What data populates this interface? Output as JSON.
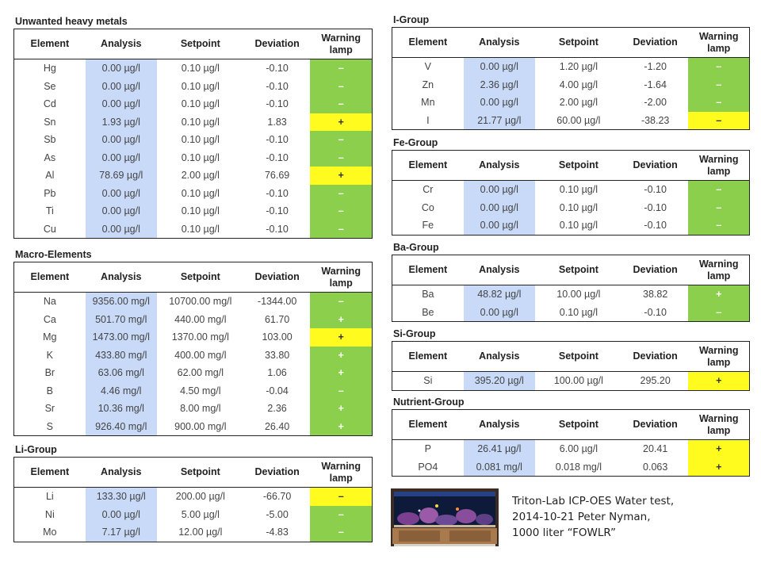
{
  "headers": {
    "element": "Element",
    "analysis": "Analysis",
    "setpoint": "Setpoint",
    "deviation": "Deviation",
    "warning_lamp": "Warning lamp"
  },
  "left_sections": [
    {
      "title": "Unwanted heavy metals",
      "rows": [
        {
          "element": "Hg",
          "analysis": "0.00 µg/l",
          "setpoint": "0.10 µg/l",
          "deviation": "-0.10",
          "lamp": "–",
          "status": "green"
        },
        {
          "element": "Se",
          "analysis": "0.00 µg/l",
          "setpoint": "0.10 µg/l",
          "deviation": "-0.10",
          "lamp": "–",
          "status": "green"
        },
        {
          "element": "Cd",
          "analysis": "0.00 µg/l",
          "setpoint": "0.10 µg/l",
          "deviation": "-0.10",
          "lamp": "–",
          "status": "green"
        },
        {
          "element": "Sn",
          "analysis": "1.93 µg/l",
          "setpoint": "0.10 µg/l",
          "deviation": "1.83",
          "lamp": "+",
          "status": "yellow"
        },
        {
          "element": "Sb",
          "analysis": "0.00 µg/l",
          "setpoint": "0.10 µg/l",
          "deviation": "-0.10",
          "lamp": "–",
          "status": "green"
        },
        {
          "element": "As",
          "analysis": "0.00 µg/l",
          "setpoint": "0.10 µg/l",
          "deviation": "-0.10",
          "lamp": "–",
          "status": "green"
        },
        {
          "element": "Al",
          "analysis": "78.69 µg/l",
          "setpoint": "2.00 µg/l",
          "deviation": "76.69",
          "lamp": "+",
          "status": "yellow"
        },
        {
          "element": "Pb",
          "analysis": "0.00 µg/l",
          "setpoint": "0.10 µg/l",
          "deviation": "-0.10",
          "lamp": "–",
          "status": "green"
        },
        {
          "element": "Ti",
          "analysis": "0.00 µg/l",
          "setpoint": "0.10 µg/l",
          "deviation": "-0.10",
          "lamp": "–",
          "status": "green"
        },
        {
          "element": "Cu",
          "analysis": "0.00 µg/l",
          "setpoint": "0.10 µg/l",
          "deviation": "-0.10",
          "lamp": "–",
          "status": "green"
        }
      ]
    },
    {
      "title": "Macro-Elements",
      "rows": [
        {
          "element": "Na",
          "analysis": "9356.00 mg/l",
          "setpoint": "10700.00 mg/l",
          "deviation": "-1344.00",
          "lamp": "–",
          "status": "green"
        },
        {
          "element": "Ca",
          "analysis": "501.70 mg/l",
          "setpoint": "440.00 mg/l",
          "deviation": "61.70",
          "lamp": "+",
          "status": "green"
        },
        {
          "element": "Mg",
          "analysis": "1473.00 mg/l",
          "setpoint": "1370.00 mg/l",
          "deviation": "103.00",
          "lamp": "+",
          "status": "yellow"
        },
        {
          "element": "K",
          "analysis": "433.80 mg/l",
          "setpoint": "400.00 mg/l",
          "deviation": "33.80",
          "lamp": "+",
          "status": "green"
        },
        {
          "element": "Br",
          "analysis": "63.06 mg/l",
          "setpoint": "62.00 mg/l",
          "deviation": "1.06",
          "lamp": "+",
          "status": "green"
        },
        {
          "element": "B",
          "analysis": "4.46 mg/l",
          "setpoint": "4.50 mg/l",
          "deviation": "-0.04",
          "lamp": "–",
          "status": "green"
        },
        {
          "element": "Sr",
          "analysis": "10.36 mg/l",
          "setpoint": "8.00 mg/l",
          "deviation": "2.36",
          "lamp": "+",
          "status": "green"
        },
        {
          "element": "S",
          "analysis": "926.40 mg/l",
          "setpoint": "900.00 mg/l",
          "deviation": "26.40",
          "lamp": "+",
          "status": "green"
        }
      ]
    },
    {
      "title": "Li-Group",
      "rows": [
        {
          "element": "Li",
          "analysis": "133.30 µg/l",
          "setpoint": "200.00 µg/l",
          "deviation": "-66.70",
          "lamp": "–",
          "status": "yellow"
        },
        {
          "element": "Ni",
          "analysis": "0.00 µg/l",
          "setpoint": "5.00 µg/l",
          "deviation": "-5.00",
          "lamp": "–",
          "status": "green"
        },
        {
          "element": "Mo",
          "analysis": "7.17 µg/l",
          "setpoint": "12.00 µg/l",
          "deviation": "-4.83",
          "lamp": "–",
          "status": "green"
        }
      ]
    }
  ],
  "right_sections": [
    {
      "title": "I-Group",
      "rows": [
        {
          "element": "V",
          "analysis": "0.00 µg/l",
          "setpoint": "1.20 µg/l",
          "deviation": "-1.20",
          "lamp": "–",
          "status": "green"
        },
        {
          "element": "Zn",
          "analysis": "2.36 µg/l",
          "setpoint": "4.00 µg/l",
          "deviation": "-1.64",
          "lamp": "–",
          "status": "green"
        },
        {
          "element": "Mn",
          "analysis": "0.00 µg/l",
          "setpoint": "2.00 µg/l",
          "deviation": "-2.00",
          "lamp": "–",
          "status": "green"
        },
        {
          "element": "I",
          "analysis": "21.77 µg/l",
          "setpoint": "60.00 µg/l",
          "deviation": "-38.23",
          "lamp": "–",
          "status": "yellow"
        }
      ]
    },
    {
      "title": "Fe-Group",
      "rows": [
        {
          "element": "Cr",
          "analysis": "0.00 µg/l",
          "setpoint": "0.10 µg/l",
          "deviation": "-0.10",
          "lamp": "–",
          "status": "green"
        },
        {
          "element": "Co",
          "analysis": "0.00 µg/l",
          "setpoint": "0.10 µg/l",
          "deviation": "-0.10",
          "lamp": "–",
          "status": "green"
        },
        {
          "element": "Fe",
          "analysis": "0.00 µg/l",
          "setpoint": "0.10 µg/l",
          "deviation": "-0.10",
          "lamp": "–",
          "status": "green"
        }
      ]
    },
    {
      "title": "Ba-Group",
      "rows": [
        {
          "element": "Ba",
          "analysis": "48.82 µg/l",
          "setpoint": "10.00 µg/l",
          "deviation": "38.82",
          "lamp": "+",
          "status": "green"
        },
        {
          "element": "Be",
          "analysis": "0.00 µg/l",
          "setpoint": "0.10 µg/l",
          "deviation": "-0.10",
          "lamp": "–",
          "status": "green"
        }
      ]
    },
    {
      "title": "Si-Group",
      "rows": [
        {
          "element": "Si",
          "analysis": "395.20 µg/l",
          "setpoint": "100.00 µg/l",
          "deviation": "295.20",
          "lamp": "+",
          "status": "yellow"
        }
      ]
    },
    {
      "title": "Nutrient-Group",
      "rows": [
        {
          "element": "P",
          "analysis": "26.41 µg/l",
          "setpoint": "6.00 µg/l",
          "deviation": "20.41",
          "lamp": "+",
          "status": "yellow"
        },
        {
          "element": "PO4",
          "analysis": "0.081 mg/l",
          "setpoint": "0.018 mg/l",
          "deviation": "0.063",
          "lamp": "+",
          "status": "yellow"
        }
      ]
    }
  ],
  "caption": {
    "line1": "Triton-Lab ICP-OES Water test,",
    "line2": "2014-10-21 Peter Nyman,",
    "line3": "1000 liter “FOWLR”"
  },
  "colors": {
    "analysis_bg": "#c9daf8",
    "green": "#8ccf4d",
    "yellow": "#fffb1f"
  }
}
